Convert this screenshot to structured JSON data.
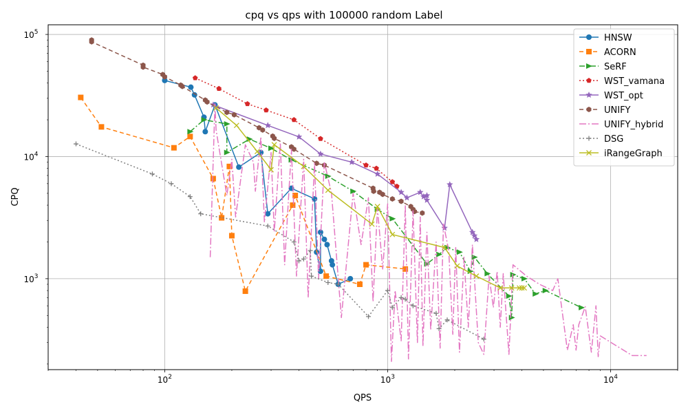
{
  "chart_data": {
    "type": "line",
    "title": "cpq vs qps with 100000 random Label",
    "xlabel": "QPS",
    "ylabel": "CPQ",
    "xscale": "log",
    "yscale": "log",
    "xlim": [
      30,
      20000
    ],
    "ylim": [
      180,
      120000
    ],
    "grid": true,
    "legend_position": "top-right",
    "x_ticks": [
      {
        "value": 100,
        "base": "10",
        "exp": "2"
      },
      {
        "value": 1000,
        "base": "10",
        "exp": "3"
      },
      {
        "value": 10000,
        "base": "10",
        "exp": "4"
      }
    ],
    "y_ticks": [
      {
        "value": 1000,
        "base": "10",
        "exp": "3"
      },
      {
        "value": 10000,
        "base": "10",
        "exp": "4"
      },
      {
        "value": 100000,
        "base": "10",
        "exp": "5"
      }
    ],
    "series": [
      {
        "name": "HNSW",
        "color": "#1f77b4",
        "dash": "",
        "marker": "circle",
        "points": [
          [
            100,
            42000
          ],
          [
            131,
            37000
          ],
          [
            136,
            32000
          ],
          [
            150,
            21000
          ],
          [
            152,
            16000
          ],
          [
            168,
            26500
          ],
          [
            215,
            8200
          ],
          [
            270,
            10800
          ],
          [
            290,
            3400
          ],
          [
            370,
            5500
          ],
          [
            470,
            4500
          ],
          [
            480,
            1650
          ],
          [
            500,
            1150
          ],
          [
            500,
            2400
          ],
          [
            520,
            2100
          ],
          [
            535,
            1900
          ],
          [
            560,
            1400
          ],
          [
            565,
            1300
          ],
          [
            600,
            900
          ],
          [
            680,
            1000
          ]
        ]
      },
      {
        "name": "ACORN",
        "color": "#ff7f0e",
        "dash": "6,4",
        "marker": "square",
        "points": [
          [
            42,
            30500
          ],
          [
            52,
            17500
          ],
          [
            110,
            11800
          ],
          [
            130,
            14600
          ],
          [
            165,
            6600
          ],
          [
            180,
            3150
          ],
          [
            195,
            8300
          ],
          [
            200,
            2250
          ],
          [
            230,
            790
          ],
          [
            375,
            4000
          ],
          [
            385,
            4800
          ],
          [
            530,
            1050
          ],
          [
            750,
            900
          ],
          [
            800,
            1300
          ],
          [
            1200,
            1200
          ]
        ]
      },
      {
        "name": "SeRF",
        "color": "#2ca02c",
        "dash": "8,3,2,3",
        "marker": "triangle-right",
        "points": [
          [
            130,
            16000
          ],
          [
            150,
            20000
          ],
          [
            190,
            18500
          ],
          [
            190,
            10800
          ],
          [
            240,
            13900
          ],
          [
            300,
            11700
          ],
          [
            370,
            9400
          ],
          [
            540,
            6900
          ],
          [
            700,
            5200
          ],
          [
            900,
            3700
          ],
          [
            1050,
            3100
          ],
          [
            1500,
            1320
          ],
          [
            1700,
            1580
          ],
          [
            1850,
            1800
          ],
          [
            2100,
            1650
          ],
          [
            2350,
            1150
          ],
          [
            2450,
            1500
          ],
          [
            2800,
            1100
          ],
          [
            3500,
            720
          ],
          [
            3600,
            480
          ],
          [
            3650,
            1080
          ],
          [
            4100,
            1000
          ],
          [
            4600,
            750
          ],
          [
            5100,
            800
          ],
          [
            7400,
            580
          ]
        ]
      },
      {
        "name": "WST_vamana",
        "color": "#d62728",
        "dash": "2,3",
        "marker": "pentagon",
        "points": [
          [
            137,
            44000
          ],
          [
            175,
            36000
          ],
          [
            235,
            27000
          ],
          [
            285,
            24000
          ],
          [
            380,
            20000
          ],
          [
            500,
            14000
          ],
          [
            800,
            8500
          ],
          [
            890,
            8000
          ],
          [
            1050,
            6200
          ],
          [
            1100,
            5700
          ]
        ]
      },
      {
        "name": "WST_opt",
        "color": "#9467bd",
        "dash": "",
        "marker": "star",
        "points": [
          [
            165,
            26500
          ],
          [
            290,
            18000
          ],
          [
            400,
            14500
          ],
          [
            500,
            10500
          ],
          [
            690,
            9000
          ],
          [
            900,
            7200
          ],
          [
            1150,
            5100
          ],
          [
            1220,
            4600
          ],
          [
            1400,
            5100
          ],
          [
            1450,
            4700
          ],
          [
            1500,
            4800
          ],
          [
            1500,
            4400
          ],
          [
            1800,
            2600
          ],
          [
            1900,
            5900
          ],
          [
            2400,
            2400
          ],
          [
            2450,
            2250
          ],
          [
            2500,
            2100
          ]
        ]
      },
      {
        "name": "UNIFY",
        "color": "#8c564b",
        "dash": "6,4",
        "marker": "hexagon",
        "points": [
          [
            47,
            90000
          ],
          [
            47,
            87000
          ],
          [
            80,
            56000
          ],
          [
            80,
            54000
          ],
          [
            98,
            47000
          ],
          [
            100,
            45000
          ],
          [
            118,
            38500
          ],
          [
            120,
            37500
          ],
          [
            152,
            29000
          ],
          [
            155,
            28000
          ],
          [
            190,
            23000
          ],
          [
            205,
            22000
          ],
          [
            265,
            17200
          ],
          [
            275,
            16500
          ],
          [
            305,
            14700
          ],
          [
            310,
            14100
          ],
          [
            370,
            12000
          ],
          [
            380,
            11500
          ],
          [
            480,
            8800
          ],
          [
            520,
            8500
          ],
          [
            860,
            5500
          ],
          [
            865,
            5200
          ],
          [
            920,
            5100
          ],
          [
            950,
            4900
          ],
          [
            1050,
            4500
          ],
          [
            1150,
            4300
          ],
          [
            1270,
            3900
          ],
          [
            1300,
            3700
          ],
          [
            1320,
            3550
          ],
          [
            1430,
            3450
          ]
        ]
      },
      {
        "name": "UNIFY_hybrid",
        "color": "#e377c2",
        "dash": "10,3,2,3",
        "marker": "none",
        "points": [
          [
            160,
            1500
          ],
          [
            168,
            27000
          ],
          [
            170,
            16500
          ],
          [
            190,
            4800
          ],
          [
            200,
            9500
          ],
          [
            208,
            3200
          ],
          [
            230,
            12500
          ],
          [
            250,
            9000
          ],
          [
            255,
            5200
          ],
          [
            270,
            14500
          ],
          [
            280,
            2900
          ],
          [
            300,
            10800
          ],
          [
            310,
            2400
          ],
          [
            330,
            13000
          ],
          [
            345,
            1300
          ],
          [
            370,
            11500
          ],
          [
            390,
            1050
          ],
          [
            420,
            9500
          ],
          [
            440,
            700
          ],
          [
            470,
            8800
          ],
          [
            490,
            1000
          ],
          [
            520,
            9000
          ],
          [
            560,
            5000
          ],
          [
            620,
            480
          ],
          [
            700,
            5000
          ],
          [
            760,
            1900
          ],
          [
            820,
            4600
          ],
          [
            860,
            650
          ],
          [
            900,
            3800
          ],
          [
            950,
            1200
          ],
          [
            1000,
            4100
          ],
          [
            1040,
            210
          ],
          [
            1080,
            800
          ],
          [
            1150,
            310
          ],
          [
            1200,
            4000
          ],
          [
            1240,
            220
          ],
          [
            1300,
            3600
          ],
          [
            1360,
            300
          ],
          [
            1400,
            3200
          ],
          [
            1440,
            280
          ],
          [
            1500,
            2400
          ],
          [
            1560,
            380
          ],
          [
            1650,
            2000
          ],
          [
            1720,
            270
          ],
          [
            1780,
            2800
          ],
          [
            1880,
            1700
          ],
          [
            1960,
            350
          ],
          [
            2020,
            1800
          ],
          [
            2100,
            250
          ],
          [
            2200,
            1500
          ],
          [
            2300,
            400
          ],
          [
            2400,
            1900
          ],
          [
            2550,
            300
          ],
          [
            2700,
            240
          ],
          [
            2850,
            1050
          ],
          [
            2980,
            580
          ],
          [
            3100,
            1150
          ],
          [
            3200,
            400
          ],
          [
            3300,
            1100
          ],
          [
            3500,
            240
          ],
          [
            3650,
            1300
          ],
          [
            4200,
            1050
          ],
          [
            4800,
            900
          ],
          [
            5500,
            800
          ],
          [
            5800,
            1000
          ],
          [
            6100,
            500
          ],
          [
            6400,
            260
          ],
          [
            6800,
            420
          ],
          [
            7000,
            260
          ],
          [
            7200,
            420
          ],
          [
            7700,
            590
          ],
          [
            8200,
            250
          ],
          [
            8600,
            600
          ],
          [
            8800,
            230
          ],
          [
            9000,
            340
          ],
          [
            12500,
            235
          ],
          [
            14500,
            235
          ]
        ]
      },
      {
        "name": "DSG",
        "color": "#7f7f7f",
        "dash": "2,3",
        "marker": "plus",
        "points": [
          [
            40,
            12700
          ],
          [
            88,
            7200
          ],
          [
            107,
            6000
          ],
          [
            130,
            4700
          ],
          [
            145,
            3400
          ],
          [
            290,
            2700
          ],
          [
            380,
            2000
          ],
          [
            400,
            1400
          ],
          [
            420,
            1450
          ],
          [
            450,
            1700
          ],
          [
            455,
            1050
          ],
          [
            540,
            930
          ],
          [
            600,
            900
          ],
          [
            820,
            490
          ],
          [
            1000,
            800
          ],
          [
            1050,
            580
          ],
          [
            1150,
            700
          ],
          [
            1200,
            680
          ],
          [
            1300,
            600
          ],
          [
            1650,
            520
          ],
          [
            1700,
            390
          ],
          [
            1850,
            460
          ],
          [
            2700,
            320
          ]
        ]
      },
      {
        "name": "iRangeGraph",
        "color": "#bcbd22",
        "dash": "",
        "marker": "x",
        "points": [
          [
            170,
            25000
          ],
          [
            210,
            18000
          ],
          [
            260,
            11000
          ],
          [
            300,
            7800
          ],
          [
            310,
            12500
          ],
          [
            420,
            8300
          ],
          [
            540,
            5300
          ],
          [
            850,
            2800
          ],
          [
            900,
            3900
          ],
          [
            1050,
            2300
          ],
          [
            1800,
            1800
          ],
          [
            2050,
            1270
          ],
          [
            2500,
            1050
          ],
          [
            3200,
            840
          ],
          [
            3600,
            840
          ],
          [
            3900,
            840
          ],
          [
            4000,
            840
          ],
          [
            4100,
            840
          ]
        ]
      }
    ]
  }
}
